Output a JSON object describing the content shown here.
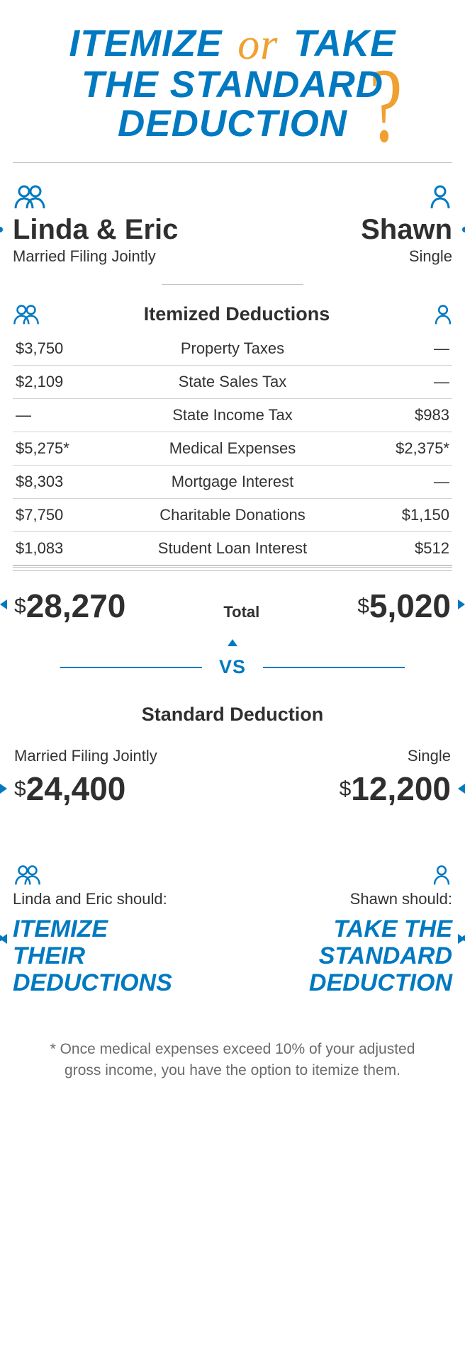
{
  "colors": {
    "blue": "#0079c1",
    "orange": "#f0a030",
    "text_dark": "#2f2f2f",
    "text_mid": "#333333",
    "text_light": "#6b6b6b",
    "rule": "#c4c4c4",
    "row_rule": "#d2d2d2",
    "background": "#ffffff"
  },
  "title": {
    "word1": "ITEMIZE",
    "word_or": "or",
    "word2": "TAKE",
    "line2": "THE STANDARD",
    "line3": "DEDUCTION",
    "qmark": "?",
    "fontsize": 53,
    "or_fontsize": 62
  },
  "profiles": {
    "left": {
      "name": "Linda & Eric",
      "status": "Married Filing Jointly"
    },
    "right": {
      "name": "Shawn",
      "status": "Single"
    }
  },
  "itemized": {
    "title": "Itemized Deductions",
    "rows": [
      {
        "left": "$3,750",
        "label": "Property Taxes",
        "right": "—"
      },
      {
        "left": "$2,109",
        "label": "State Sales Tax",
        "right": "—"
      },
      {
        "left": "—",
        "label": "State Income Tax",
        "right": "$983"
      },
      {
        "left": "$5,275*",
        "label": "Medical Expenses",
        "right": "$2,375*"
      },
      {
        "left": "$8,303",
        "label": "Mortgage Interest",
        "right": "—"
      },
      {
        "left": "$7,750",
        "label": "Charitable Donations",
        "right": "$1,150"
      },
      {
        "left": "$1,083",
        "label": "Student Loan Interest",
        "right": "$512"
      }
    ],
    "total": {
      "left": "28,270",
      "label": "Total",
      "right": "5,020",
      "currency": "$"
    }
  },
  "vs_label": "VS",
  "standard": {
    "title": "Standard Deduction",
    "left": {
      "status": "Married Filing Jointly",
      "value": "24,400",
      "currency": "$"
    },
    "right": {
      "status": "Single",
      "value": "12,200",
      "currency": "$"
    }
  },
  "recommendation": {
    "left": {
      "who": "Linda and Eric should:",
      "a1": "ITEMIZE",
      "a2": "THEIR",
      "a3": "DEDUCTIONS"
    },
    "right": {
      "who": "Shawn should:",
      "a1": "TAKE THE",
      "a2": "STANDARD",
      "a3": "DEDUCTION"
    }
  },
  "footnote": "* Once medical expenses exceed 10% of your adjusted gross income, you have the option to itemize them."
}
